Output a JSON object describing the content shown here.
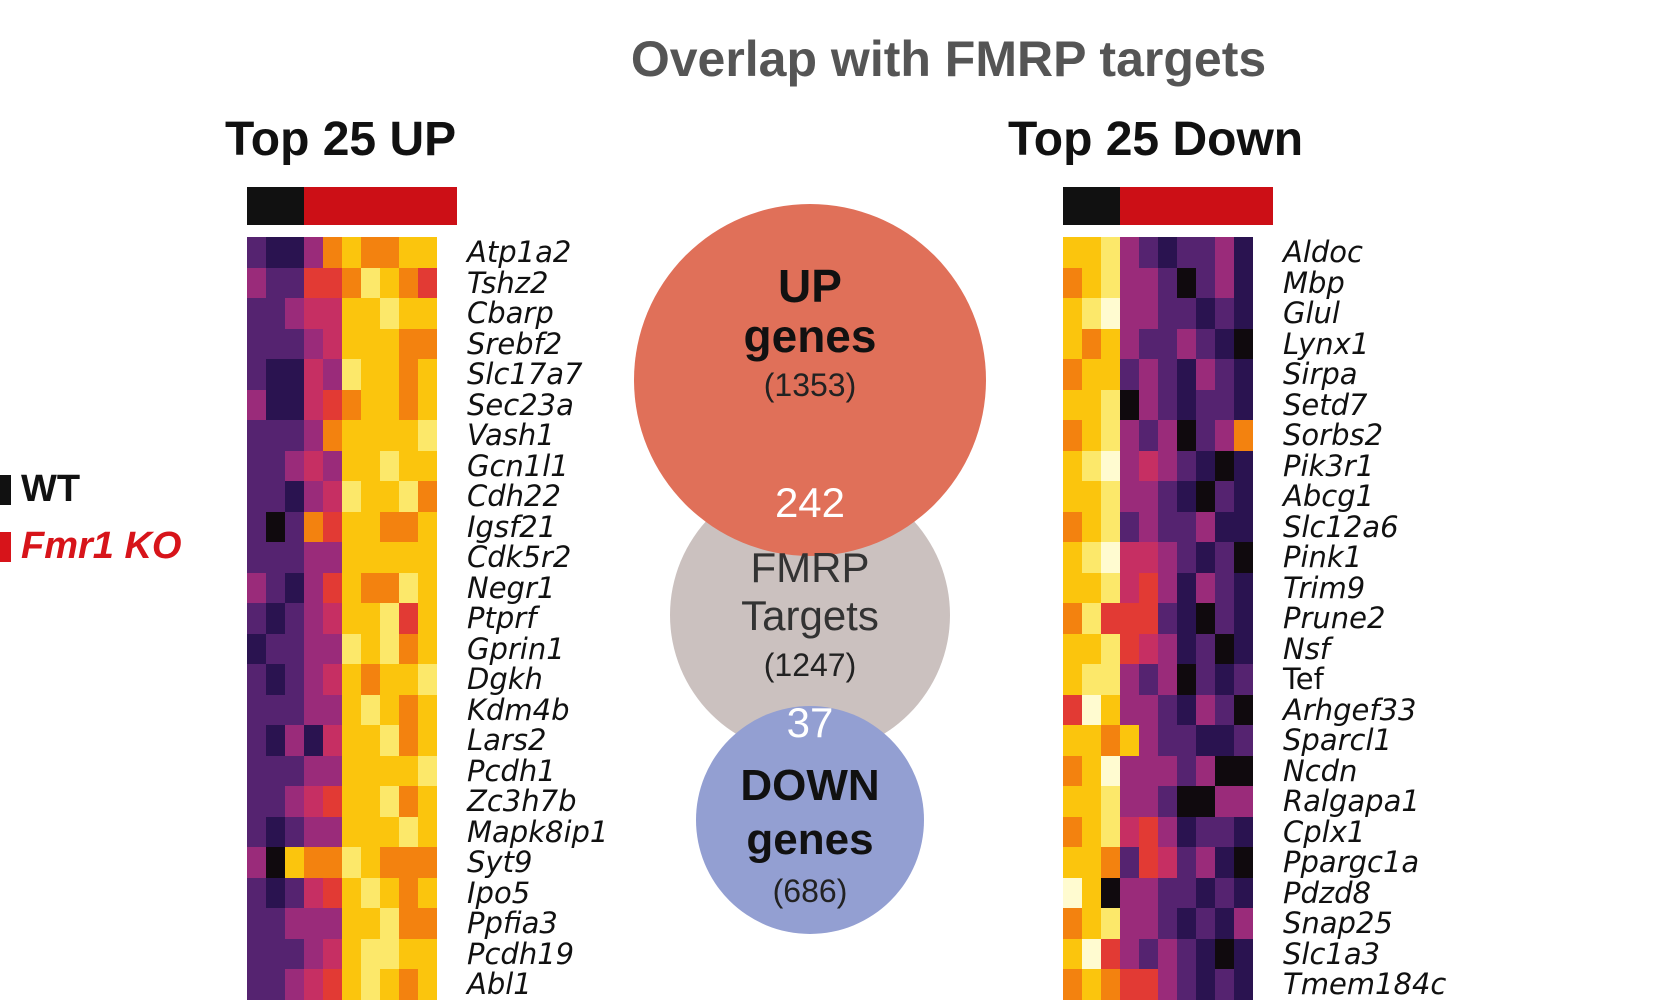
{
  "title": "Overlap with FMRP targets",
  "legend": [
    {
      "label": "WT",
      "color": "#111111",
      "italic": false
    },
    {
      "label": "Fmr1 KO",
      "color": "#d7141a",
      "italic": true
    }
  ],
  "colors": {
    "wt": "#111111",
    "ko": "#cc0f16"
  },
  "palette": [
    "#100a0e",
    "#2a1350",
    "#552370",
    "#9a2b7a",
    "#c62f63",
    "#e23a34",
    "#f3820f",
    "#fbc50d",
    "#fce86a",
    "#fffbd0"
  ],
  "panels": {
    "up": {
      "title": "Top 25 UP",
      "genes": [
        "Atp1a2",
        "Tshz2",
        "Cbarp",
        "Srebf2",
        "Slc17a7",
        "Sec23a",
        "Vash1",
        "Gcn1l1",
        "Cdh22",
        "Igsf21",
        "Cdk5r2",
        "Negr1",
        "Ptprf",
        "Gprin1",
        "Dgkh",
        "Kdm4b",
        "Lars2",
        "Pcdh1",
        "Zc3h7b",
        "Mapk8ip1",
        "Syt9",
        "Ipo5",
        "Ppfia3",
        "Pcdh19",
        "Abl1"
      ],
      "heatmap": [
        [
          2,
          1,
          1,
          3,
          6,
          7,
          6,
          6,
          7,
          7
        ],
        [
          3,
          2,
          2,
          5,
          5,
          6,
          8,
          7,
          6,
          5
        ],
        [
          2,
          2,
          3,
          4,
          4,
          7,
          7,
          8,
          7,
          7
        ],
        [
          2,
          2,
          2,
          3,
          4,
          7,
          7,
          7,
          6,
          6
        ],
        [
          2,
          1,
          1,
          4,
          3,
          8,
          7,
          7,
          6,
          7
        ],
        [
          3,
          1,
          1,
          4,
          5,
          6,
          7,
          7,
          6,
          7
        ],
        [
          2,
          2,
          2,
          3,
          6,
          7,
          7,
          7,
          7,
          8
        ],
        [
          2,
          2,
          3,
          4,
          3,
          7,
          7,
          8,
          7,
          7
        ],
        [
          2,
          2,
          1,
          3,
          4,
          8,
          7,
          7,
          8,
          6
        ],
        [
          2,
          0,
          2,
          6,
          5,
          7,
          7,
          6,
          6,
          7
        ],
        [
          2,
          2,
          2,
          3,
          3,
          7,
          7,
          7,
          7,
          7
        ],
        [
          3,
          2,
          1,
          3,
          5,
          7,
          6,
          6,
          8,
          7
        ],
        [
          2,
          1,
          2,
          3,
          4,
          7,
          7,
          8,
          5,
          7
        ],
        [
          1,
          2,
          2,
          3,
          3,
          8,
          7,
          8,
          6,
          7
        ],
        [
          2,
          1,
          2,
          3,
          4,
          7,
          6,
          7,
          7,
          8
        ],
        [
          2,
          2,
          2,
          3,
          3,
          7,
          8,
          7,
          6,
          7
        ],
        [
          2,
          1,
          3,
          1,
          4,
          7,
          7,
          8,
          6,
          7
        ],
        [
          2,
          2,
          2,
          3,
          3,
          7,
          7,
          7,
          7,
          8
        ],
        [
          2,
          2,
          3,
          4,
          5,
          7,
          7,
          8,
          6,
          7
        ],
        [
          2,
          1,
          2,
          3,
          3,
          7,
          7,
          7,
          8,
          7
        ],
        [
          3,
          0,
          7,
          6,
          6,
          8,
          7,
          6,
          6,
          6
        ],
        [
          2,
          1,
          2,
          4,
          5,
          7,
          8,
          7,
          6,
          7
        ],
        [
          2,
          2,
          3,
          3,
          3,
          7,
          7,
          8,
          6,
          6
        ],
        [
          2,
          2,
          2,
          3,
          4,
          7,
          8,
          8,
          7,
          7
        ],
        [
          2,
          2,
          3,
          4,
          5,
          7,
          8,
          7,
          6,
          7
        ]
      ]
    },
    "down": {
      "title": "Top 25 Down",
      "genes": [
        "Aldoc",
        "Mbp",
        "Glul",
        "Lynx1",
        "Sirpa",
        "Setd7",
        "Sorbs2",
        "Pik3r1",
        "Abcg1",
        "Slc12a6",
        "Pink1",
        "Trim9",
        "Prune2",
        "Nsf",
        "Tef",
        "Arhgef33",
        "Sparcl1",
        "Ncdn",
        "Ralgapa1",
        "Cplx1",
        "Ppargc1a",
        "Pdzd8",
        "Snap25",
        "Slc1a3",
        "Tmem184c"
      ],
      "upright_genes": [
        "Tef"
      ],
      "heatmap": [
        [
          7,
          7,
          8,
          3,
          2,
          1,
          2,
          2,
          3,
          1
        ],
        [
          6,
          7,
          8,
          3,
          3,
          2,
          0,
          2,
          3,
          1
        ],
        [
          7,
          8,
          9,
          3,
          3,
          2,
          2,
          1,
          2,
          1
        ],
        [
          7,
          6,
          7,
          3,
          2,
          2,
          3,
          2,
          1,
          0
        ],
        [
          6,
          7,
          7,
          2,
          3,
          2,
          1,
          3,
          2,
          1
        ],
        [
          7,
          7,
          8,
          0,
          3,
          2,
          1,
          2,
          2,
          1
        ],
        [
          6,
          7,
          8,
          3,
          2,
          3,
          0,
          2,
          3,
          6
        ],
        [
          7,
          8,
          9,
          3,
          4,
          3,
          2,
          1,
          0,
          1
        ],
        [
          7,
          7,
          8,
          3,
          3,
          2,
          1,
          0,
          2,
          1
        ],
        [
          6,
          7,
          8,
          2,
          3,
          2,
          2,
          3,
          1,
          1
        ],
        [
          7,
          8,
          9,
          4,
          4,
          3,
          2,
          1,
          2,
          0
        ],
        [
          7,
          7,
          8,
          4,
          5,
          3,
          1,
          3,
          2,
          1
        ],
        [
          6,
          8,
          5,
          5,
          5,
          2,
          1,
          0,
          2,
          1
        ],
        [
          7,
          7,
          8,
          5,
          4,
          3,
          1,
          2,
          0,
          1
        ],
        [
          7,
          8,
          8,
          3,
          2,
          3,
          0,
          2,
          1,
          2
        ],
        [
          5,
          9,
          7,
          3,
          3,
          2,
          1,
          3,
          2,
          0
        ],
        [
          7,
          7,
          6,
          7,
          3,
          2,
          2,
          1,
          1,
          2
        ],
        [
          6,
          7,
          9,
          3,
          3,
          3,
          2,
          3,
          0,
          0
        ],
        [
          7,
          7,
          8,
          3,
          3,
          2,
          0,
          0,
          3,
          3
        ],
        [
          6,
          7,
          8,
          4,
          5,
          3,
          1,
          2,
          2,
          1
        ],
        [
          7,
          7,
          6,
          2,
          5,
          4,
          2,
          3,
          1,
          0
        ],
        [
          9,
          7,
          0,
          3,
          3,
          2,
          2,
          1,
          2,
          1
        ],
        [
          6,
          7,
          8,
          3,
          3,
          2,
          1,
          2,
          1,
          3
        ],
        [
          7,
          9,
          5,
          3,
          2,
          3,
          2,
          1,
          0,
          1
        ],
        [
          6,
          7,
          6,
          5,
          5,
          3,
          2,
          1,
          2,
          1
        ]
      ]
    }
  },
  "venn": {
    "up": {
      "line1": "UP",
      "line2": "genes",
      "count": "(1353)",
      "color": "#e07059"
    },
    "fmrp": {
      "line1": "FMRP",
      "line2": "Targets",
      "count": "(1247)",
      "color": "#cbc1bf"
    },
    "down": {
      "line1": "DOWN",
      "line2": "genes",
      "count": "(686)",
      "color": "#939fd2"
    },
    "overlap_up": "242",
    "overlap_down": "37"
  }
}
